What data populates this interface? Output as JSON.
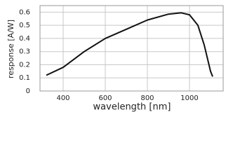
{
  "chart_data": {
    "type": "line",
    "x_label": "wavelength [nm]",
    "y_label": "response [A/W]",
    "x": [
      320,
      400,
      500,
      600,
      700,
      800,
      900,
      960,
      1000,
      1040,
      1070,
      1100,
      1110
    ],
    "series": [
      {
        "color": "#111111",
        "values": [
          0.12,
          0.18,
          0.3,
          0.4,
          0.47,
          0.54,
          0.585,
          0.595,
          0.58,
          0.5,
          0.35,
          0.15,
          0.11
        ]
      }
    ],
    "xlim": [
      290,
      1160
    ],
    "xticks": [
      400,
      600,
      800,
      1000
    ],
    "ylim": [
      0,
      0.65
    ],
    "yticks": [
      0,
      0.1,
      0.2,
      0.3,
      0.4,
      0.5,
      0.6
    ],
    "grid": true
  }
}
